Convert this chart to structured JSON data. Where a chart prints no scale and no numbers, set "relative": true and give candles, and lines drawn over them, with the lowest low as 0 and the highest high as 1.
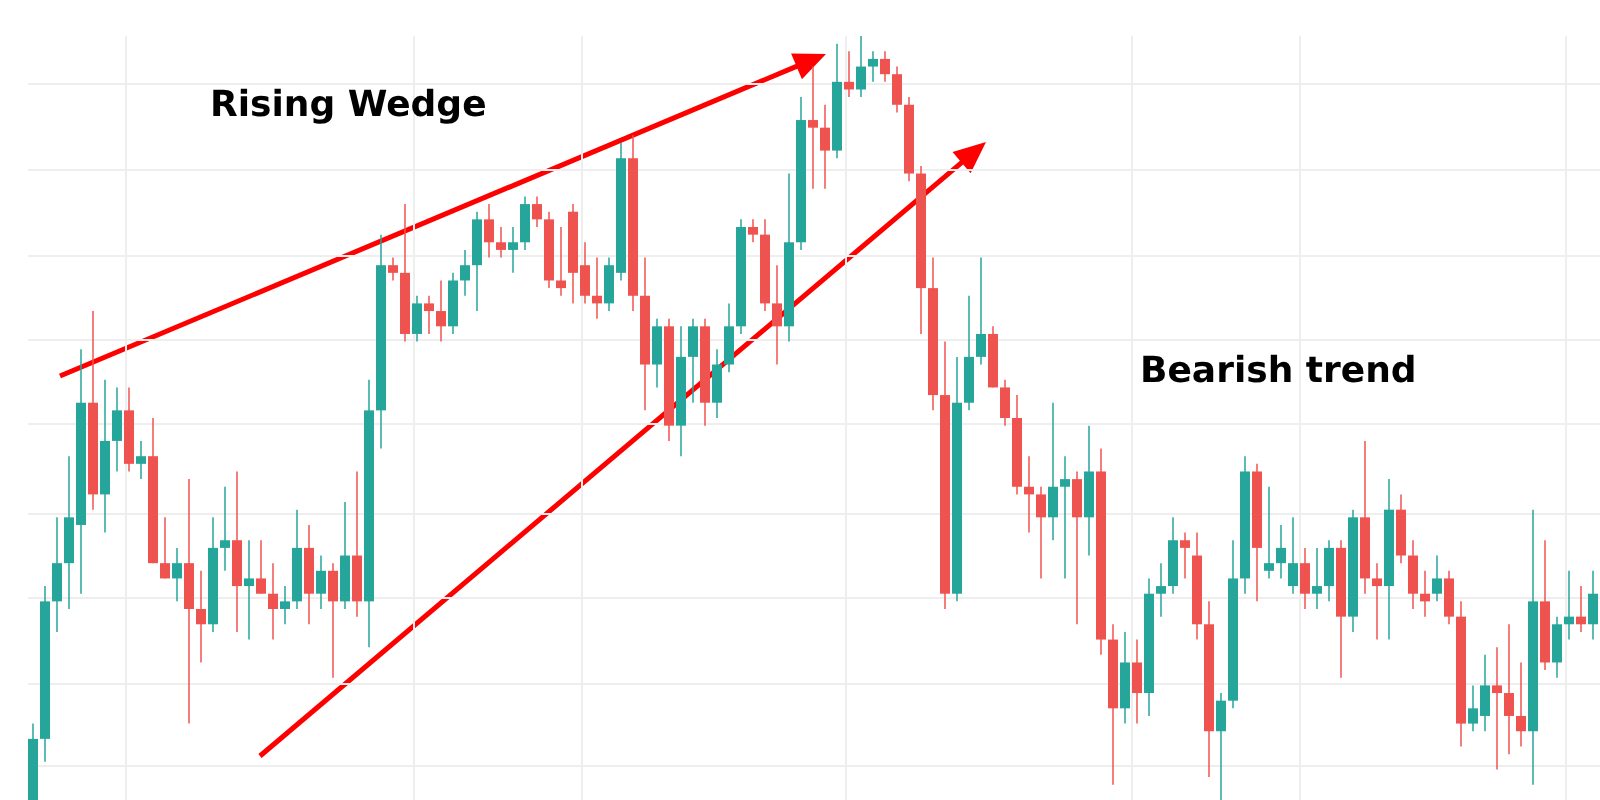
{
  "chart_data": {
    "type": "candlestick",
    "relative": true,
    "grid": true,
    "categories": [
      null,
      null,
      null,
      null,
      null,
      null,
      null,
      null,
      null,
      null,
      null,
      null,
      null,
      null,
      null,
      null,
      null,
      null,
      null,
      null,
      null,
      null,
      null,
      null,
      null,
      null,
      null,
      null,
      null,
      null,
      null,
      null,
      null,
      null,
      null,
      null,
      null,
      null,
      null,
      null,
      null,
      null,
      null,
      null,
      null,
      null,
      null,
      null,
      null,
      null,
      null,
      null,
      null,
      null,
      null,
      null,
      null,
      null,
      null,
      null,
      null,
      null,
      null,
      null,
      null,
      null,
      null,
      null,
      null,
      null,
      null,
      null,
      null,
      null,
      null,
      null,
      null,
      null,
      null,
      null,
      null,
      null,
      null,
      null,
      null,
      null,
      null,
      null,
      null,
      null,
      null,
      null,
      null,
      null,
      null,
      null,
      null,
      null,
      null,
      null,
      null,
      null,
      null,
      null,
      null,
      null,
      null,
      null,
      null,
      null,
      null,
      null,
      null,
      null,
      null,
      null,
      null,
      null,
      null,
      null,
      null,
      null,
      null,
      null,
      null,
      null,
      null,
      null,
      null,
      null,
      null
    ],
    "annotations": [
      "Rising Wedge",
      "Bearish trend"
    ],
    "ohlc": [
      [
        0,
        0.1,
        0,
        0.08
      ],
      [
        0.08,
        0.28,
        0.05,
        0.26
      ],
      [
        0.26,
        0.37,
        0.22,
        0.31
      ],
      [
        0.31,
        0.45,
        0.25,
        0.37
      ],
      [
        0.36,
        0.59,
        0.27,
        0.52
      ],
      [
        0.52,
        0.64,
        0.38,
        0.4
      ],
      [
        0.4,
        0.55,
        0.35,
        0.47
      ],
      [
        0.47,
        0.54,
        0.43,
        0.51
      ],
      [
        0.51,
        0.54,
        0.43,
        0.44
      ],
      [
        0.44,
        0.47,
        0.42,
        0.45
      ],
      [
        0.45,
        0.5,
        0.31,
        0.31
      ],
      [
        0.31,
        0.37,
        0.29,
        0.29
      ],
      [
        0.29,
        0.33,
        0.26,
        0.31
      ],
      [
        0.31,
        0.42,
        0.1,
        0.25
      ],
      [
        0.25,
        0.3,
        0.18,
        0.23
      ],
      [
        0.23,
        0.37,
        0.22,
        0.33
      ],
      [
        0.33,
        0.41,
        0.3,
        0.34
      ],
      [
        0.34,
        0.43,
        0.22,
        0.28
      ],
      [
        0.28,
        0.34,
        0.21,
        0.29
      ],
      [
        0.29,
        0.34,
        0.27,
        0.27
      ],
      [
        0.27,
        0.31,
        0.21,
        0.25
      ],
      [
        0.25,
        0.28,
        0.23,
        0.26
      ],
      [
        0.26,
        0.38,
        0.25,
        0.33
      ],
      [
        0.33,
        0.36,
        0.23,
        0.27
      ],
      [
        0.27,
        0.32,
        0.25,
        0.3
      ],
      [
        0.3,
        0.31,
        0.16,
        0.26
      ],
      [
        0.26,
        0.39,
        0.25,
        0.32
      ],
      [
        0.32,
        0.43,
        0.24,
        0.26
      ],
      [
        0.26,
        0.55,
        0.2,
        0.51
      ],
      [
        0.51,
        0.74,
        0.46,
        0.7
      ],
      [
        0.7,
        0.71,
        0.68,
        0.69
      ],
      [
        0.69,
        0.78,
        0.6,
        0.61
      ],
      [
        0.61,
        0.66,
        0.6,
        0.65
      ],
      [
        0.65,
        0.66,
        0.61,
        0.64
      ],
      [
        0.64,
        0.68,
        0.6,
        0.62
      ],
      [
        0.62,
        0.69,
        0.61,
        0.68
      ],
      [
        0.68,
        0.72,
        0.66,
        0.7
      ],
      [
        0.7,
        0.77,
        0.64,
        0.76
      ],
      [
        0.76,
        0.78,
        0.71,
        0.73
      ],
      [
        0.73,
        0.75,
        0.71,
        0.72
      ],
      [
        0.72,
        0.75,
        0.69,
        0.73
      ],
      [
        0.73,
        0.79,
        0.72,
        0.78
      ],
      [
        0.78,
        0.79,
        0.75,
        0.76
      ],
      [
        0.76,
        0.77,
        0.67,
        0.68
      ],
      [
        0.68,
        0.75,
        0.66,
        0.67
      ],
      [
        0.77,
        0.78,
        0.65,
        0.69
      ],
      [
        0.7,
        0.73,
        0.65,
        0.66
      ],
      [
        0.66,
        0.71,
        0.63,
        0.65
      ],
      [
        0.65,
        0.71,
        0.64,
        0.7
      ],
      [
        0.69,
        0.86,
        0.68,
        0.84
      ],
      [
        0.84,
        0.87,
        0.64,
        0.66
      ],
      [
        0.66,
        0.71,
        0.51,
        0.57
      ],
      [
        0.57,
        0.63,
        0.54,
        0.62
      ],
      [
        0.62,
        0.63,
        0.47,
        0.49
      ],
      [
        0.49,
        0.62,
        0.45,
        0.58
      ],
      [
        0.58,
        0.63,
        0.52,
        0.62
      ],
      [
        0.62,
        0.63,
        0.49,
        0.52
      ],
      [
        0.52,
        0.59,
        0.5,
        0.57
      ],
      [
        0.57,
        0.65,
        0.56,
        0.62
      ],
      [
        0.62,
        0.76,
        0.61,
        0.75
      ],
      [
        0.75,
        0.76,
        0.73,
        0.74
      ],
      [
        0.74,
        0.76,
        0.64,
        0.65
      ],
      [
        0.65,
        0.7,
        0.57,
        0.62
      ],
      [
        0.62,
        0.82,
        0.6,
        0.73
      ],
      [
        0.73,
        0.92,
        0.72,
        0.89
      ],
      [
        0.89,
        0.96,
        0.8,
        0.88
      ],
      [
        0.88,
        0.91,
        0.8,
        0.85
      ],
      [
        0.85,
        0.99,
        0.84,
        0.94
      ],
      [
        0.94,
        0.98,
        0.92,
        0.93
      ],
      [
        0.93,
        1.0,
        0.92,
        0.96
      ],
      [
        0.96,
        0.98,
        0.94,
        0.97
      ],
      [
        0.97,
        0.98,
        0.94,
        0.95
      ],
      [
        0.95,
        0.96,
        0.9,
        0.91
      ],
      [
        0.91,
        0.92,
        0.81,
        0.82
      ],
      [
        0.82,
        0.83,
        0.61,
        0.67
      ],
      [
        0.67,
        0.71,
        0.51,
        0.53
      ],
      [
        0.53,
        0.6,
        0.25,
        0.27
      ],
      [
        0.27,
        0.58,
        0.26,
        0.52
      ],
      [
        0.52,
        0.66,
        0.51,
        0.58
      ],
      [
        0.58,
        0.71,
        0.57,
        0.61
      ],
      [
        0.61,
        0.62,
        0.54,
        0.54
      ],
      [
        0.54,
        0.55,
        0.49,
        0.5
      ],
      [
        0.5,
        0.53,
        0.4,
        0.41
      ],
      [
        0.41,
        0.45,
        0.35,
        0.4
      ],
      [
        0.4,
        0.41,
        0.29,
        0.37
      ],
      [
        0.37,
        0.52,
        0.34,
        0.41
      ],
      [
        0.41,
        0.45,
        0.29,
        0.42
      ],
      [
        0.42,
        0.43,
        0.23,
        0.37
      ],
      [
        0.37,
        0.49,
        0.32,
        0.43
      ],
      [
        0.43,
        0.46,
        0.19,
        0.21
      ],
      [
        0.21,
        0.23,
        0.02,
        0.12
      ],
      [
        0.12,
        0.22,
        0.1,
        0.18
      ],
      [
        0.18,
        0.21,
        0.1,
        0.14
      ],
      [
        0.14,
        0.29,
        0.11,
        0.27
      ],
      [
        0.27,
        0.31,
        0.24,
        0.28
      ],
      [
        0.28,
        0.37,
        0.27,
        0.34
      ],
      [
        0.34,
        0.35,
        0.29,
        0.33
      ],
      [
        0.32,
        0.35,
        0.21,
        0.23
      ],
      [
        0.23,
        0.26,
        0.03,
        0.09
      ],
      [
        0.09,
        0.14,
        0,
        0.13
      ],
      [
        0.13,
        0.34,
        0.12,
        0.29
      ],
      [
        0.29,
        0.45,
        0.27,
        0.43
      ],
      [
        0.43,
        0.44,
        0.26,
        0.33
      ],
      [
        0.3,
        0.41,
        0.29,
        0.31
      ],
      [
        0.31,
        0.36,
        0.29,
        0.33
      ],
      [
        0.28,
        0.37,
        0.27,
        0.31
      ],
      [
        0.31,
        0.33,
        0.25,
        0.27
      ],
      [
        0.27,
        0.33,
        0.25,
        0.28
      ],
      [
        0.28,
        0.34,
        0.26,
        0.33
      ],
      [
        0.33,
        0.34,
        0.16,
        0.24
      ],
      [
        0.24,
        0.38,
        0.22,
        0.37
      ],
      [
        0.37,
        0.47,
        0.27,
        0.29
      ],
      [
        0.29,
        0.31,
        0.21,
        0.28
      ],
      [
        0.28,
        0.42,
        0.21,
        0.38
      ],
      [
        0.38,
        0.4,
        0.31,
        0.32
      ],
      [
        0.32,
        0.34,
        0.25,
        0.27
      ],
      [
        0.27,
        0.3,
        0.24,
        0.26
      ],
      [
        0.27,
        0.32,
        0.26,
        0.29
      ],
      [
        0.29,
        0.3,
        0.23,
        0.24
      ],
      [
        0.24,
        0.26,
        0.07,
        0.1
      ],
      [
        0.1,
        0.15,
        0.09,
        0.12
      ],
      [
        0.11,
        0.19,
        0.09,
        0.15
      ],
      [
        0.15,
        0.2,
        0.04,
        0.14
      ],
      [
        0.14,
        0.23,
        0.06,
        0.11
      ],
      [
        0.11,
        0.18,
        0.07,
        0.09
      ],
      [
        0.09,
        0.38,
        0.02,
        0.26
      ],
      [
        0.26,
        0.34,
        0.17,
        0.18
      ],
      [
        0.18,
        0.24,
        0.16,
        0.23
      ],
      [
        0.23,
        0.3,
        0.21,
        0.24
      ],
      [
        0.24,
        0.28,
        0.22,
        0.23
      ],
      [
        0.23,
        0.3,
        0.21,
        0.27
      ]
    ],
    "colors": [
      "#26a69a",
      "#26a69a",
      "#26a69a",
      "#26a69a",
      "#26a69a",
      "#ef5350",
      "#26a69a",
      "#26a69a",
      "#ef5350",
      "#26a69a",
      "#ef5350",
      "#ef5350",
      "#26a69a",
      "#ef5350",
      "#ef5350",
      "#26a69a",
      "#26a69a",
      "#ef5350",
      "#26a69a",
      "#ef5350",
      "#ef5350",
      "#26a69a",
      "#26a69a",
      "#ef5350",
      "#26a69a",
      "#ef5350",
      "#26a69a",
      "#ef5350",
      "#26a69a",
      "#26a69a",
      "#ef5350",
      "#ef5350",
      "#26a69a",
      "#ef5350",
      "#ef5350",
      "#26a69a",
      "#26a69a",
      "#26a69a",
      "#ef5350",
      "#ef5350",
      "#26a69a",
      "#26a69a",
      "#ef5350",
      "#ef5350",
      "#ef5350",
      "#ef5350",
      "#ef5350",
      "#ef5350",
      "#26a69a",
      "#26a69a",
      "#ef5350",
      "#ef5350",
      "#26a69a",
      "#ef5350",
      "#26a69a",
      "#26a69a",
      "#ef5350",
      "#26a69a",
      "#26a69a",
      "#26a69a",
      "#ef5350",
      "#ef5350",
      "#ef5350",
      "#26a69a",
      "#26a69a",
      "#ef5350",
      "#ef5350",
      "#26a69a",
      "#ef5350",
      "#26a69a",
      "#26a69a",
      "#ef5350",
      "#ef5350",
      "#ef5350",
      "#ef5350",
      "#ef5350",
      "#ef5350",
      "#26a69a",
      "#26a69a",
      "#26a69a",
      "#ef5350",
      "#ef5350",
      "#ef5350",
      "#ef5350",
      "#ef5350",
      "#26a69a",
      "#26a69a",
      "#ef5350",
      "#26a69a",
      "#ef5350",
      "#ef5350",
      "#26a69a",
      "#ef5350",
      "#26a69a",
      "#26a69a",
      "#26a69a",
      "#ef5350",
      "#ef5350",
      "#ef5350",
      "#26a69a",
      "#26a69a",
      "#26a69a",
      "#ef5350",
      "#26a69a",
      "#26a69a",
      "#26a69a",
      "#ef5350",
      "#26a69a",
      "#26a69a",
      "#ef5350",
      "#26a69a",
      "#ef5350",
      "#ef5350",
      "#26a69a",
      "#ef5350",
      "#ef5350",
      "#ef5350",
      "#26a69a",
      "#ef5350",
      "#ef5350",
      "#26a69a",
      "#26a69a",
      "#ef5350",
      "#ef5350",
      "#ef5350",
      "#26a69a",
      "#ef5350",
      "#26a69a",
      "#26a69a",
      "#ef5350",
      "#26a69a"
    ]
  }
}
